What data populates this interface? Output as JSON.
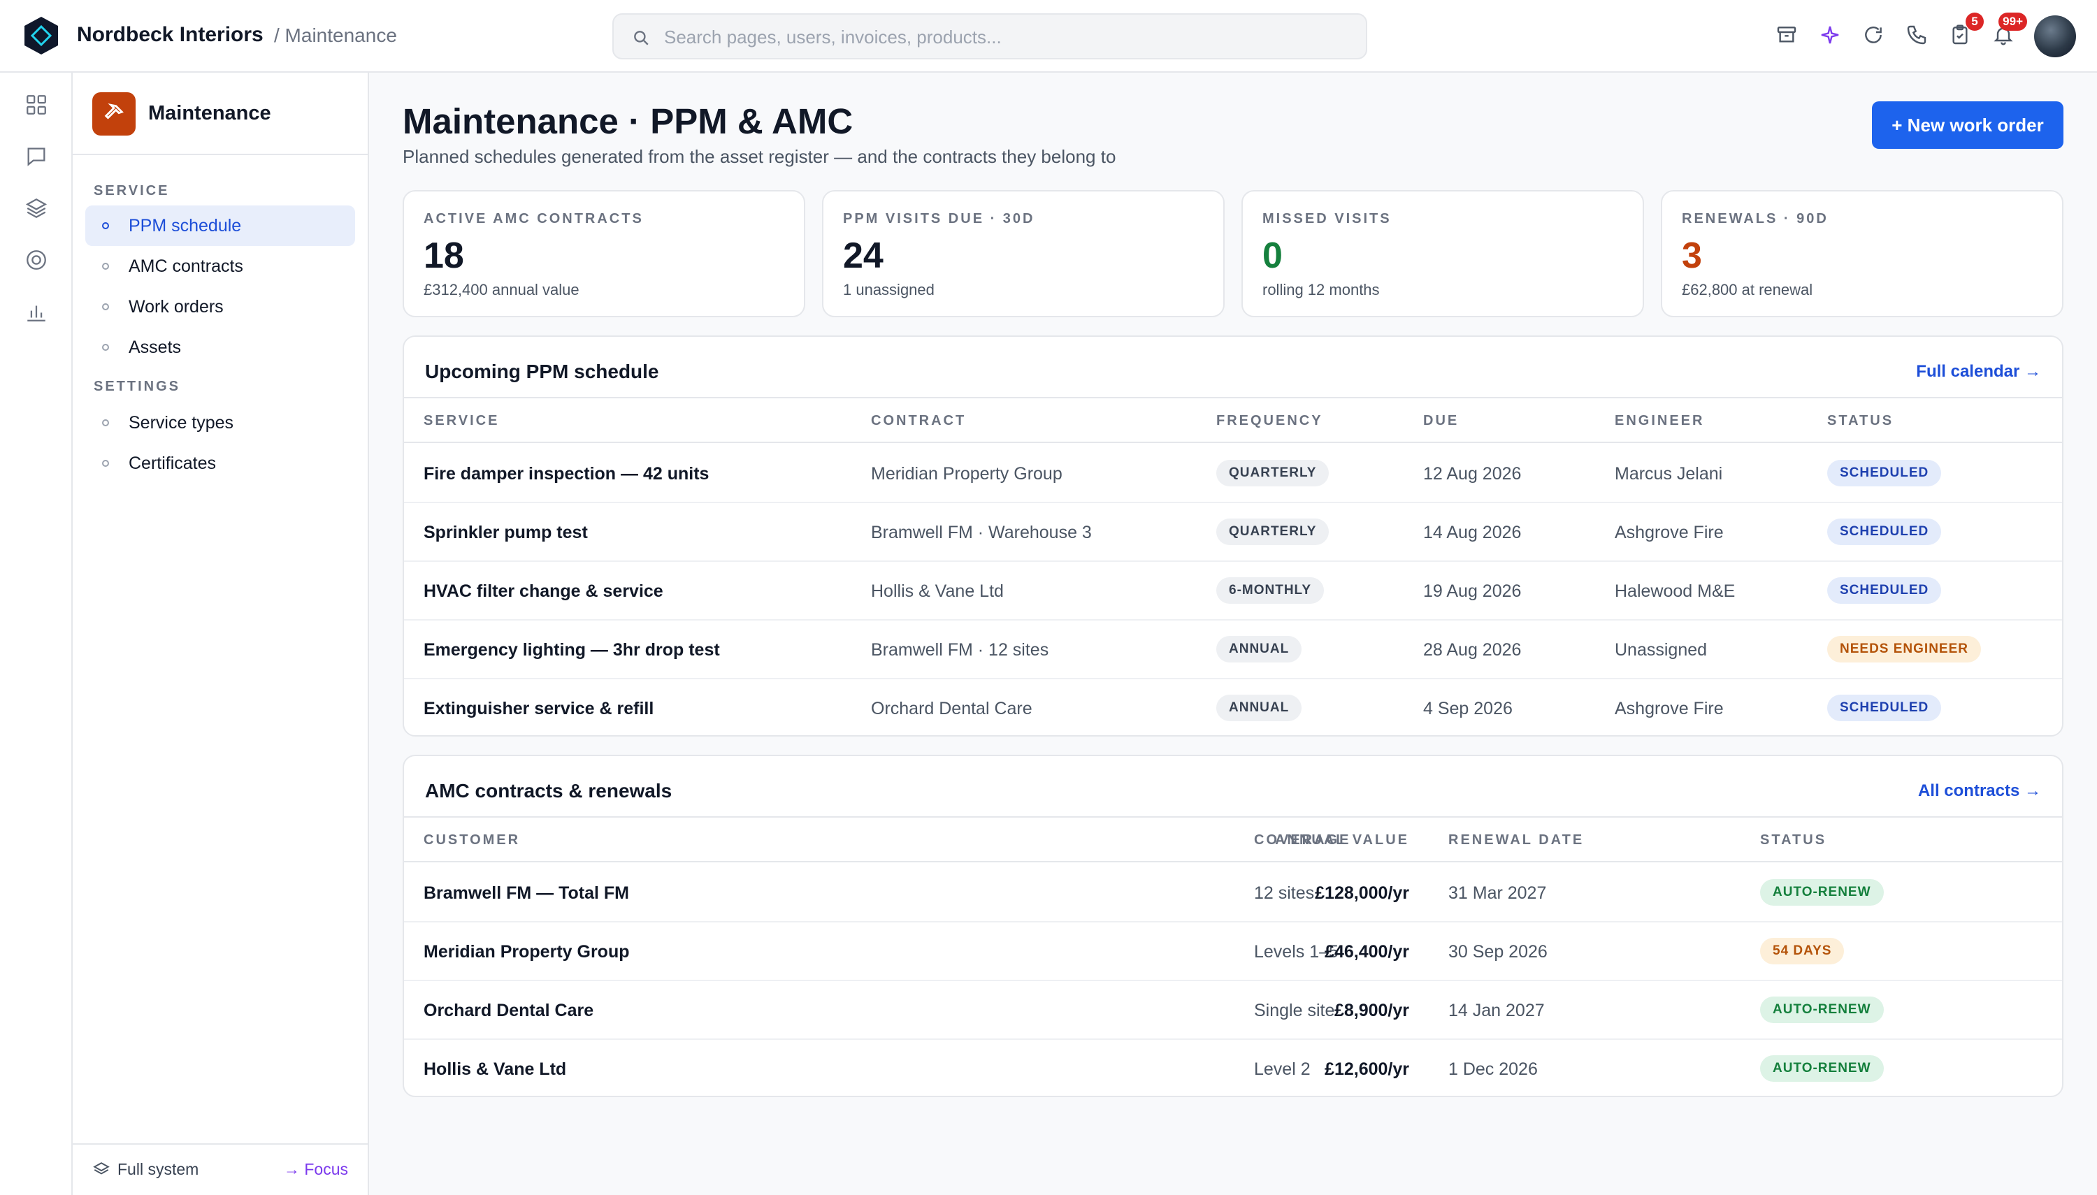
{
  "app": {
    "brand": "Nordbeck Interiors",
    "breadcrumb": "/ Maintenance"
  },
  "search": {
    "placeholder": "Search pages, users, invoices, products..."
  },
  "topbar": {
    "icons": [
      "archive-icon",
      "sparkle-icon",
      "refresh-icon",
      "phone-icon",
      "clipboard-check-icon",
      "bell-icon"
    ],
    "tasks_badge": "5",
    "notifications_badge": "99+"
  },
  "rail": {
    "icons": [
      "grid-icon",
      "chat-icon",
      "layers-icon",
      "target-icon",
      "bar-chart-icon"
    ]
  },
  "sidebar": {
    "title": "Maintenance",
    "service_heading": "SERVICE",
    "service_items": [
      "PPM schedule",
      "AMC contracts",
      "Work orders",
      "Assets"
    ],
    "settings_heading": "SETTINGS",
    "settings_items": [
      "Service types",
      "Certificates"
    ],
    "active": "PPM schedule",
    "footer_left": "Full system",
    "footer_right": "→ Focus"
  },
  "page": {
    "title": "Maintenance · PPM & AMC",
    "subtitle": "Planned schedules generated from the asset register — and the contracts they belong to",
    "new_button": "+ New work order"
  },
  "stats": [
    {
      "label": "ACTIVE AMC CONTRACTS",
      "value": "18",
      "sub": "£312,400 annual value",
      "color": "#111827"
    },
    {
      "label": "PPM VISITS DUE · 30D",
      "value": "24",
      "sub": "1 unassigned",
      "color": "#111827"
    },
    {
      "label": "MISSED VISITS",
      "value": "0",
      "sub": "rolling 12 months",
      "color": "#15803d"
    },
    {
      "label": "RENEWALS · 90D",
      "value": "3",
      "sub": "£62,800 at renewal",
      "color": "#c2410c"
    }
  ],
  "ppm": {
    "title": "Upcoming PPM schedule",
    "link": "Full calendar →",
    "columns": [
      "SERVICE",
      "CONTRACT",
      "FREQUENCY",
      "DUE",
      "ENGINEER",
      "STATUS"
    ],
    "rows": [
      {
        "service": "Fire damper inspection — 42 units",
        "contract": "Meridian Property Group",
        "frequency": "QUARTERLY",
        "due": "12 Aug 2026",
        "engineer": "Marcus Jelani",
        "status": "SCHEDULED"
      },
      {
        "service": "Sprinkler pump test",
        "contract": "Bramwell FM · Warehouse 3",
        "frequency": "QUARTERLY",
        "due": "14 Aug 2026",
        "engineer": "Ashgrove Fire",
        "status": "SCHEDULED"
      },
      {
        "service": "HVAC filter change & service",
        "contract": "Hollis & Vane Ltd",
        "frequency": "6-MONTHLY",
        "due": "19 Aug 2026",
        "engineer": "Halewood M&E",
        "status": "SCHEDULED"
      },
      {
        "service": "Emergency lighting — 3hr drop test",
        "contract": "Bramwell FM · 12 sites",
        "frequency": "ANNUAL",
        "due": "28 Aug 2026",
        "engineer": "Unassigned",
        "status": "NEEDS ENGINEER"
      },
      {
        "service": "Extinguisher service & refill",
        "contract": "Orchard Dental Care",
        "frequency": "ANNUAL",
        "due": "4 Sep 2026",
        "engineer": "Ashgrove Fire",
        "status": "SCHEDULED"
      }
    ]
  },
  "amc": {
    "title": "AMC contracts & renewals",
    "link": "All contracts →",
    "columns": [
      "CUSTOMER",
      "COVERAGE",
      "ANNUAL VALUE",
      "RENEWAL DATE",
      "STATUS"
    ],
    "rows": [
      {
        "customer": "Bramwell FM — Total FM",
        "coverage": "12 sites",
        "value": "£128,000/yr",
        "renewal": "31 Mar 2027",
        "status": "AUTO-RENEW"
      },
      {
        "customer": "Meridian Property Group",
        "coverage": "Levels 1–5",
        "value": "£46,400/yr",
        "renewal": "30 Sep 2026",
        "status": "54 DAYS"
      },
      {
        "customer": "Orchard Dental Care",
        "coverage": "Single site",
        "value": "£8,900/yr",
        "renewal": "14 Jan 2027",
        "status": "AUTO-RENEW"
      },
      {
        "customer": "Hollis & Vane Ltd",
        "coverage": "Level 2",
        "value": "£12,600/yr",
        "renewal": "1 Dec 2026",
        "status": "AUTO-RENEW"
      }
    ]
  }
}
